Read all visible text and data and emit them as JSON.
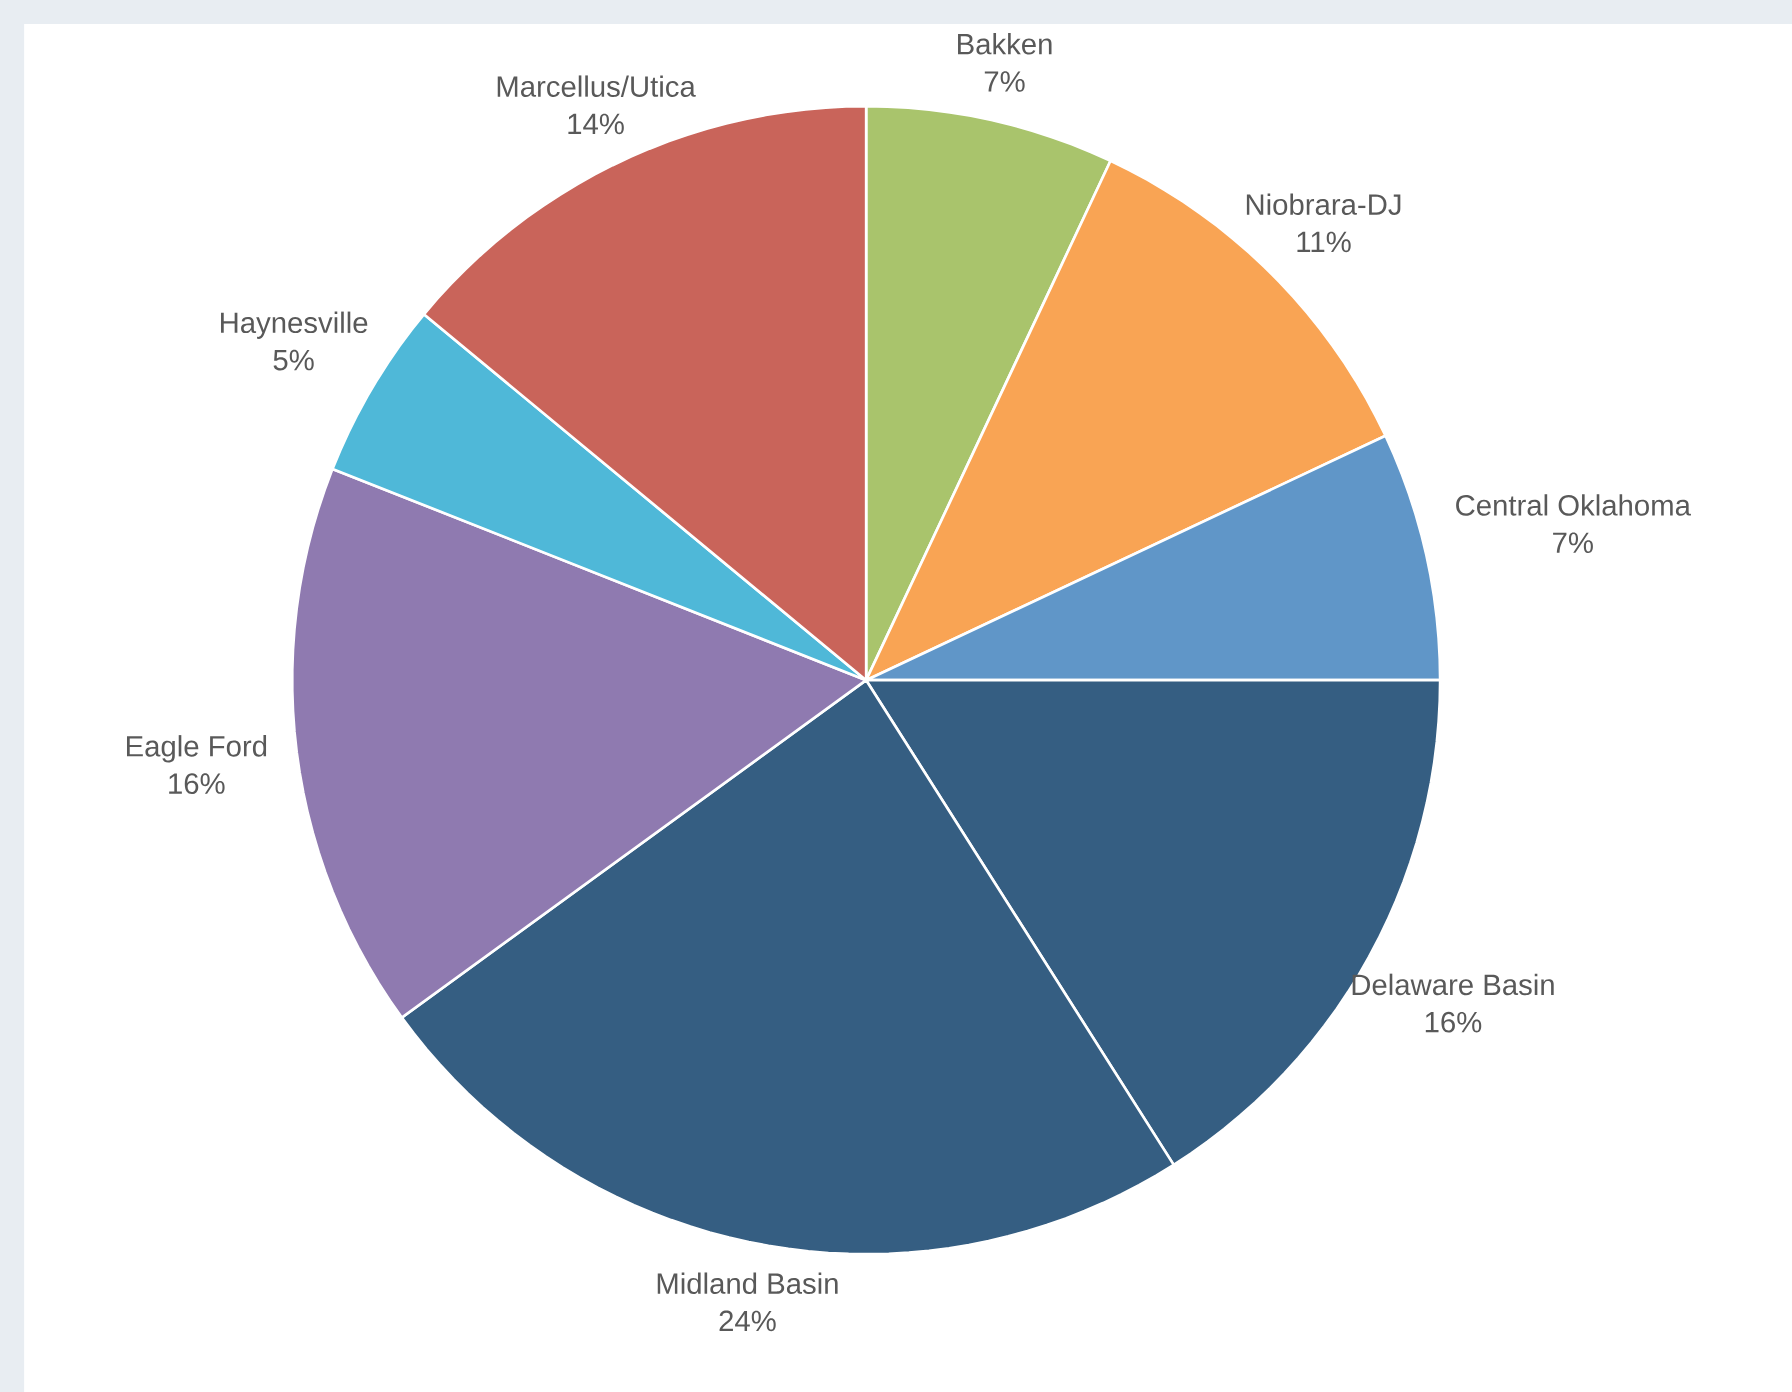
{
  "chart_data": {
    "type": "pie",
    "categories": [
      "Bakken",
      "Niobrara-DJ",
      "Central Oklahoma",
      "Delaware Basin",
      "Midland Basin",
      "Eagle Ford",
      "Haynesville",
      "Marcellus/Utica"
    ],
    "values": [
      7,
      11,
      7,
      16,
      24,
      16,
      5,
      14
    ],
    "value_labels": [
      "7%",
      "11%",
      "7%",
      "16%",
      "24%",
      "16%",
      "5%",
      "14%"
    ],
    "colors": [
      "#a9c46c",
      "#f9a454",
      "#6096c8",
      "#355e82",
      "#355e82",
      "#8f7ab0",
      "#4fb8d8",
      "#c9645a"
    ]
  }
}
